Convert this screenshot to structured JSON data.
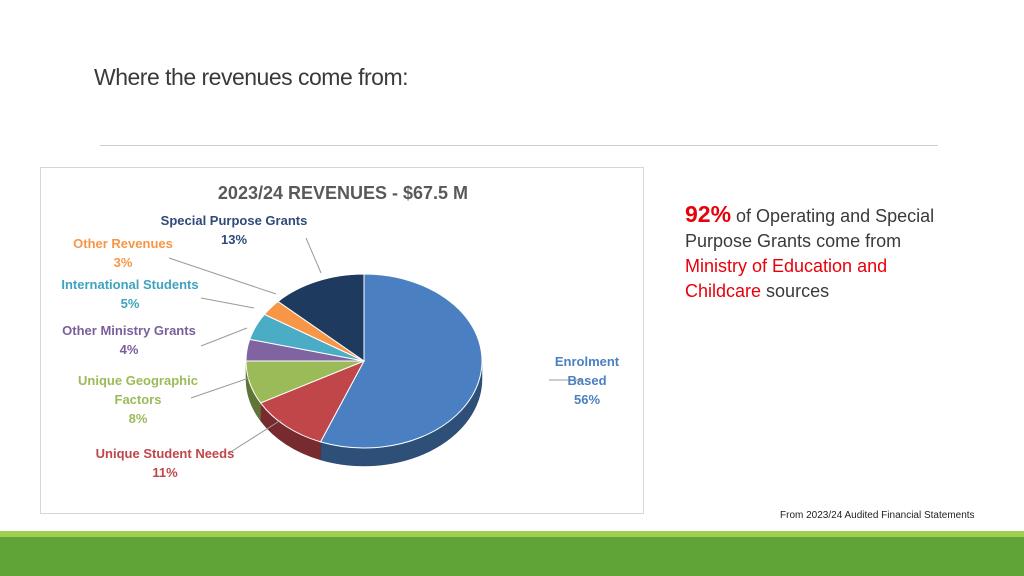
{
  "slide": {
    "title": "Where the revenues come from:",
    "source_note": "From 2023/24 Audited Financial Statements"
  },
  "callout": {
    "percent": "92%",
    "text_1": " of Operating and Special Purpose Grants come from ",
    "highlight": "Ministry of Education and Childcare",
    "text_2": " sources"
  },
  "chart_data": {
    "type": "pie",
    "title": "2023/24 REVENUES - $67.5 M",
    "slices": [
      {
        "name": "Enrolment Based",
        "lines": [
          "Enrolment",
          "Based",
          "56%"
        ],
        "value": 56,
        "color": "#4a7fc1",
        "label_color": "#4a7fc1"
      },
      {
        "name": "Unique Student Needs",
        "lines": [
          "Unique Student Needs",
          "11%"
        ],
        "value": 11,
        "color": "#c0464a",
        "label_color": "#c0464a"
      },
      {
        "name": "Unique Geographic Factors",
        "lines": [
          "Unique Geographic",
          "Factors",
          "8%"
        ],
        "value": 8,
        "color": "#9bbb59",
        "label_color": "#9bbb59"
      },
      {
        "name": "Other Ministry Grants",
        "lines": [
          "Other Ministry Grants",
          "4%"
        ],
        "value": 4,
        "color": "#8064a2",
        "label_color": "#7a5f9c"
      },
      {
        "name": "International Students",
        "lines": [
          "International Students",
          "5%"
        ],
        "value": 5,
        "color": "#4bacc6",
        "label_color": "#3fa3bf"
      },
      {
        "name": "Other Revenues",
        "lines": [
          "Other Revenues",
          "3%"
        ],
        "value": 3,
        "color": "#f79646",
        "label_color": "#f79646"
      },
      {
        "name": "Special Purpose Grants",
        "lines": [
          "Special Purpose Grants",
          "13%"
        ],
        "value": 13,
        "color": "#1f3a5f",
        "label_color": "#2e4a7a"
      }
    ]
  }
}
